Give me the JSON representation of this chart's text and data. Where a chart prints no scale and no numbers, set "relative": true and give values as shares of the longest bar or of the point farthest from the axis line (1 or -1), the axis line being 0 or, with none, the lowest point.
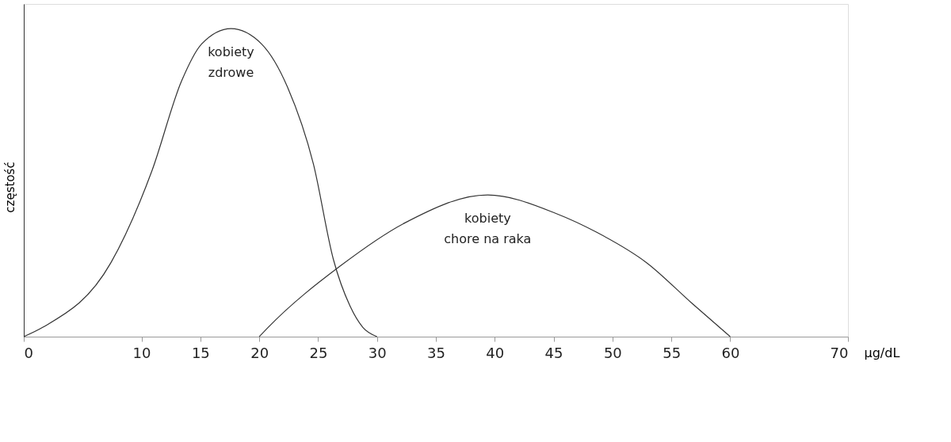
{
  "chart_data": {
    "type": "line",
    "xlabel": "µg/dL",
    "ylabel": "częstość",
    "relative": true,
    "grid": false,
    "legend": false,
    "marker": "none",
    "xlim": [
      0,
      70
    ],
    "xticks": [
      0,
      10,
      15,
      20,
      25,
      30,
      35,
      40,
      45,
      50,
      55,
      60,
      70
    ],
    "series": [
      {
        "name": "kobiety zdrowe",
        "color": "#333333",
        "x": [
          0,
          1.6,
          7.4,
          10.9,
          13.4,
          15.1,
          17.6,
          20.2,
          22.4,
          24.6,
          26.3,
          27.7,
          28.8,
          30
        ],
        "values": [
          0,
          0.03,
          0.24,
          0.54,
          0.83,
          0.95,
          1,
          0.95,
          0.81,
          0.56,
          0.25,
          0.1,
          0.03,
          0
        ]
      },
      {
        "name": "kobiety chore na raka",
        "color": "#333333",
        "x": [
          20,
          20.75,
          26.9,
          32.4,
          39.4,
          45.2,
          48.6,
          52.9,
          56.7,
          60
        ],
        "values": [
          0,
          0.03,
          0.23,
          0.37,
          0.46,
          0.4,
          0.34,
          0.24,
          0.11,
          0
        ]
      }
    ]
  }
}
